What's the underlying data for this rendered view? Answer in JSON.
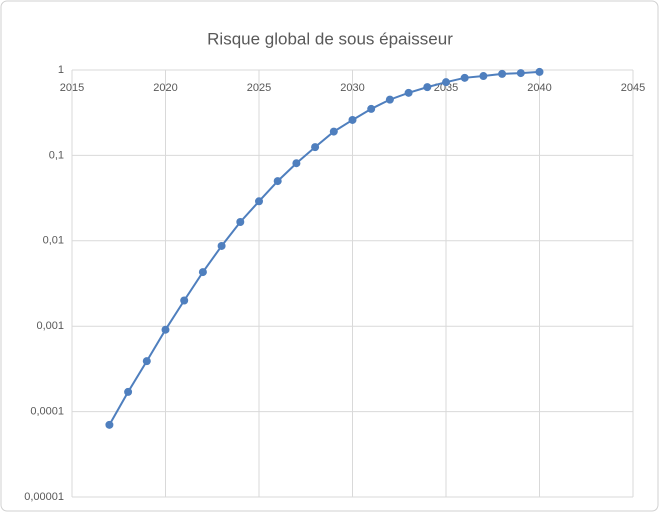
{
  "chart_data": {
    "type": "line",
    "title": "Risque global de sous épaisseur",
    "x": [
      2017,
      2018,
      2019,
      2020,
      2021,
      2022,
      2023,
      2024,
      2025,
      2026,
      2027,
      2028,
      2029,
      2030,
      2031,
      2032,
      2033,
      2034,
      2035,
      2036,
      2037,
      2038,
      2039,
      2040
    ],
    "values": [
      7e-05,
      0.00017,
      0.00039,
      0.00091,
      0.002,
      0.0043,
      0.0087,
      0.0166,
      0.029,
      0.05,
      0.081,
      0.125,
      0.19,
      0.26,
      0.35,
      0.45,
      0.54,
      0.63,
      0.72,
      0.81,
      0.85,
      0.9,
      0.92,
      0.95
    ],
    "color": "#4f7fbe",
    "xlim": [
      2015,
      2045
    ],
    "xticks": [
      2015,
      2020,
      2025,
      2030,
      2035,
      2040,
      2045
    ],
    "ylim": [
      1e-05,
      1
    ],
    "y_log": true,
    "yticks": [
      {
        "value": 1e-05,
        "label": "0,00001"
      },
      {
        "value": 0.0001,
        "label": "0,0001"
      },
      {
        "value": 0.001,
        "label": "0,001"
      },
      {
        "value": 0.01,
        "label": "0,01"
      },
      {
        "value": 0.1,
        "label": "0,1"
      },
      1
    ],
    "grid": true
  }
}
